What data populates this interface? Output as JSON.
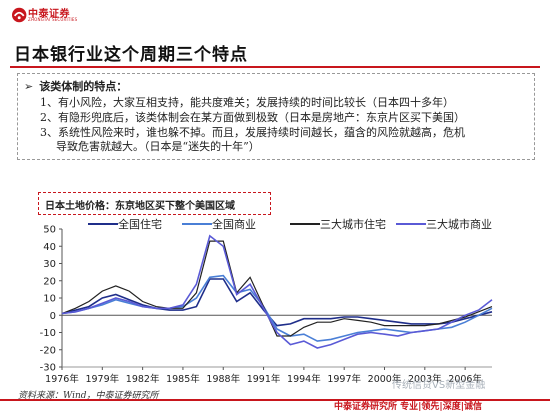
{
  "header": {
    "brand_cn": "中泰证券",
    "brand_en": "ZHONGTAI SECURITIES"
  },
  "title": "日本银行业这个周期三个特点",
  "bullets": {
    "heading": "该类体制的特点：",
    "lines": [
      "1、有小风险，大家互相支持，能共度难关；发展持续的时间比较长（日本四十多年）",
      "2、有隐形兜底后，该类体制会在某方面做到极致（日本是房地产：东京片区买下美国）",
      "3、系统性风险来时，谁也躲不掉。而且，发展持续时间越长，蕴含的风险就越高，危机",
      "导致危害就越大。（日本是“迷失的十年”）"
    ]
  },
  "chart_box_label": "日本土地价格：东京地区买下整个美国区域",
  "chart_data": {
    "type": "line",
    "x": [
      1976,
      1977,
      1978,
      1979,
      1980,
      1981,
      1982,
      1983,
      1984,
      1985,
      1986,
      1987,
      1988,
      1989,
      1990,
      1991,
      1992,
      1993,
      1994,
      1995,
      1996,
      1997,
      1998,
      1999,
      2000,
      2001,
      2002,
      2003,
      2004,
      2005,
      2006,
      2007,
      2008
    ],
    "ylim": [
      -30,
      50
    ],
    "yticks": [
      -30,
      -20,
      -10,
      0,
      10,
      20,
      30,
      40,
      50
    ],
    "xtick_labels": [
      "1976年",
      "1979年",
      "1982年",
      "1985年",
      "1988年",
      "1991年",
      "1994年",
      "1997年",
      "2000年",
      "2003年",
      "2006年"
    ],
    "series": [
      {
        "name": "全国住宅",
        "color": "#1f2e8a",
        "values": [
          1,
          3,
          5,
          10,
          12,
          9,
          6,
          4,
          3,
          3,
          5,
          21,
          21,
          8,
          13,
          3,
          -6,
          -5,
          -2,
          -2,
          -2,
          -1,
          -1,
          -2,
          -3,
          -4,
          -5,
          -5,
          -5,
          -4,
          -2,
          0,
          2
        ]
      },
      {
        "name": "全国商业",
        "color": "#4a7fd6",
        "values": [
          1,
          2,
          4,
          6,
          9,
          7,
          5,
          4,
          4,
          5,
          10,
          22,
          23,
          13,
          15,
          5,
          -8,
          -12,
          -11,
          -15,
          -14,
          -12,
          -10,
          -9,
          -8,
          -9,
          -10,
          -9,
          -8,
          -7,
          -4,
          0,
          4
        ]
      },
      {
        "name": "三大城市住宅",
        "color": "#222222",
        "values": [
          1,
          4,
          8,
          14,
          17,
          14,
          8,
          5,
          4,
          4,
          13,
          43,
          43,
          13,
          22,
          5,
          -12,
          -12,
          -7,
          -4,
          -4,
          -2,
          -3,
          -4,
          -6,
          -6,
          -6,
          -6,
          -5,
          -3,
          -1,
          2,
          5
        ]
      },
      {
        "name": "三大城市商业",
        "color": "#5a5ad6",
        "values": [
          1,
          2,
          4,
          7,
          10,
          8,
          5,
          4,
          4,
          6,
          18,
          46,
          40,
          12,
          18,
          4,
          -10,
          -17,
          -15,
          -19,
          -17,
          -14,
          -11,
          -10,
          -11,
          -12,
          -10,
          -9,
          -8,
          -4,
          0,
          3,
          9
        ]
      }
    ]
  },
  "source": "资料来源：Wind，中泰证券研究所",
  "footer": "中泰证券研究所 专业|领先|深度|诚信",
  "watermark": "传统信贷VS新型金融",
  "colors": {
    "brand_red": "#c8161d"
  }
}
